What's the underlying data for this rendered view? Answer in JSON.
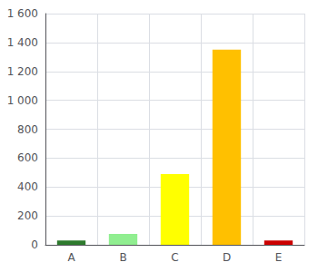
{
  "chart_data": {
    "type": "bar",
    "categories": [
      "A",
      "B",
      "C",
      "D",
      "E"
    ],
    "values": [
      30,
      75,
      490,
      1350,
      30
    ],
    "colors": [
      "#2d7a2d",
      "#90ee90",
      "#ffff00",
      "#ffc000",
      "#cc0000"
    ],
    "ylim": [
      0,
      1600
    ],
    "yticks": [
      0,
      200,
      400,
      600,
      800,
      {
        "value": 1000,
        "label": "1 000"
      },
      {
        "value": 1200,
        "label": "1 200"
      },
      {
        "value": 1400,
        "label": "1 400"
      },
      {
        "value": 1600,
        "label": "1 600"
      }
    ],
    "grid": true
  }
}
